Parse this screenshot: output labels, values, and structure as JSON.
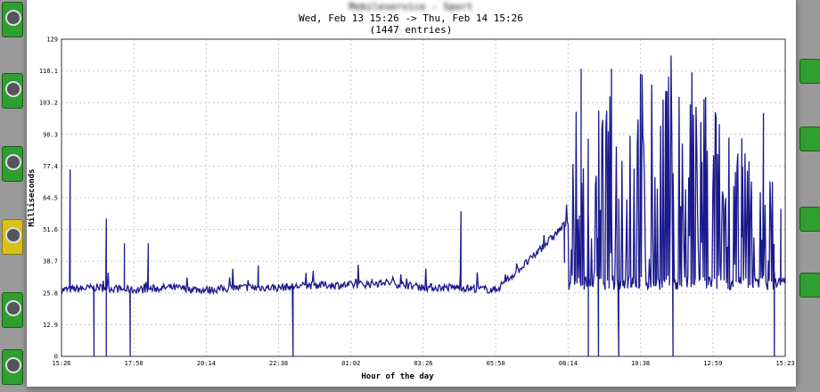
{
  "title_blurred": "Mobileservice - Sport",
  "title_line2": "Wed, Feb 13 15:26 -> Thu, Feb 14 15:26",
  "title_line3": "(1447 entries)",
  "colors": {
    "series": "#1a1a8c",
    "grid": "#c8c8c8",
    "background": "#ffffff"
  },
  "chart_data": {
    "type": "line",
    "xlabel": "Hour of the day",
    "ylabel": "Milliseconds",
    "x_tick_labels": [
      "15:26",
      "17:50",
      "20:14",
      "22:38",
      "01:02",
      "03:26",
      "05:50",
      "08:14",
      "10:38",
      "12:59",
      "15:23"
    ],
    "y_tick_labels": [
      "0",
      "12.9",
      "25.8",
      "38.7",
      "51.6",
      "64.5",
      "77.4",
      "90.3",
      "103.2",
      "116.1",
      "129"
    ],
    "ylim": [
      0,
      129
    ],
    "grid": true,
    "series": [
      {
        "x": [
          0,
          0.5,
          1,
          1.5,
          2,
          2.5,
          3,
          3.5,
          4,
          4.5,
          5,
          5.5,
          6,
          6.5,
          7,
          7.5,
          8,
          8.5,
          9,
          9.5,
          10
        ],
        "values": [
          27,
          28,
          27,
          28,
          27,
          28,
          28,
          29,
          29,
          30,
          28,
          28,
          27,
          40,
          55,
          60,
          70,
          75,
          62,
          45,
          30
        ],
        "notable_spikes": [
          {
            "x": 0.12,
            "y": 76
          },
          {
            "x": 0.62,
            "y": 56
          },
          {
            "x": 0.87,
            "y": 46
          },
          {
            "x": 1.2,
            "y": 46
          },
          {
            "x": 2.72,
            "y": 37
          },
          {
            "x": 5.52,
            "y": 59
          },
          {
            "x": 6.95,
            "y": 38
          },
          {
            "x": 7.18,
            "y": 117
          },
          {
            "x": 7.6,
            "y": 117
          },
          {
            "x": 8.0,
            "y": 115
          },
          {
            "x": 8.35,
            "y": 108
          },
          {
            "x": 8.85,
            "y": 79
          },
          {
            "x": 9.4,
            "y": 57
          },
          {
            "x": 9.7,
            "y": 99
          },
          {
            "x": 9.94,
            "y": 60
          }
        ],
        "notable_dips": [
          {
            "x": 0.45,
            "y": 0
          },
          {
            "x": 0.62,
            "y": 0
          },
          {
            "x": 0.95,
            "y": 0
          },
          {
            "x": 3.2,
            "y": 0
          },
          {
            "x": 7.28,
            "y": 0
          },
          {
            "x": 7.42,
            "y": 0
          },
          {
            "x": 7.7,
            "y": 0
          },
          {
            "x": 8.45,
            "y": 0
          },
          {
            "x": 9.85,
            "y": 0
          }
        ]
      }
    ]
  }
}
